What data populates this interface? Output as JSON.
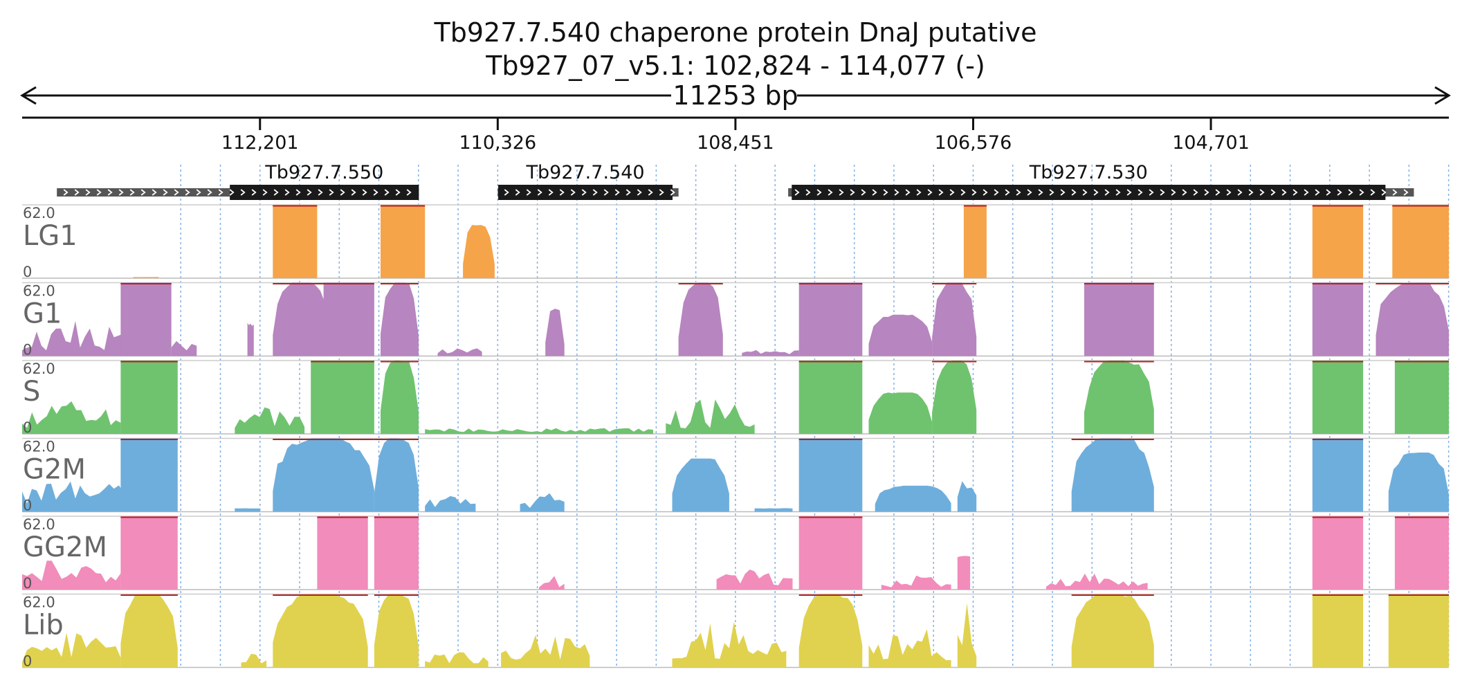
{
  "title": {
    "line1": "Tb927.7.540  chaperone protein DnaJ  putative",
    "line2": "Tb927_07_v5.1: 102,824 - 114,077 (-)",
    "span_label": "11253 bp"
  },
  "chart_data": {
    "type": "area",
    "x_range": [
      102824,
      114077
    ],
    "x_reversed": true,
    "x_ticks": [
      {
        "value": 112201,
        "label": "112,201"
      },
      {
        "value": 110326,
        "label": "110,326"
      },
      {
        "value": 108451,
        "label": "108,451"
      },
      {
        "value": 106576,
        "label": "106,576"
      },
      {
        "value": 104701,
        "label": "104,701"
      }
    ],
    "genes": [
      {
        "name": "Tb927.7.550",
        "cds": [
          112439,
          110948
        ],
        "utr": [
          113803,
          111001
        ],
        "strand": "+"
      },
      {
        "name": "Tb927.7.540",
        "cds": [
          110322,
          108947
        ],
        "utr": [
          110326,
          108900
        ],
        "strand": "+"
      },
      {
        "name": "Tb927.7.530",
        "cds": [
          108007,
          103324
        ],
        "utr": [
          108035,
          103100
        ],
        "strand": "+"
      }
    ],
    "y_range": [
      0,
      62.0
    ],
    "y_labels": {
      "max": "62.0",
      "min": "0"
    },
    "tracks": [
      {
        "name": "LG1",
        "color": "#f5a44a",
        "segments": [
          {
            "from": 113200,
            "to": 113000,
            "peak": 1,
            "shape": "flat"
          },
          {
            "from": 112100,
            "to": 111750,
            "peak": 62,
            "shape": "plateau"
          },
          {
            "from": 111250,
            "to": 110900,
            "peak": 62,
            "shape": "plateau"
          },
          {
            "from": 110600,
            "to": 110350,
            "peak": 45,
            "shape": "hill"
          },
          {
            "from": 106650,
            "to": 106470,
            "peak": 62,
            "shape": "plateau"
          },
          {
            "from": 103900,
            "to": 103500,
            "peak": 62,
            "shape": "plateau"
          },
          {
            "from": 103270,
            "to": 102824,
            "peak": 62,
            "shape": "plateau"
          }
        ]
      },
      {
        "name": "G1",
        "color": "#b785bf",
        "segments": [
          {
            "from": 114077,
            "to": 113200,
            "peak": 30,
            "shape": "noisy"
          },
          {
            "from": 113300,
            "to": 112900,
            "peak": 62,
            "shape": "plateau"
          },
          {
            "from": 112900,
            "to": 112700,
            "peak": 15,
            "shape": "low"
          },
          {
            "from": 112300,
            "to": 112250,
            "peak": 28,
            "shape": "flat"
          },
          {
            "from": 112100,
            "to": 111650,
            "peak": 62,
            "shape": "hill"
          },
          {
            "from": 111700,
            "to": 111300,
            "peak": 62,
            "shape": "plateau"
          },
          {
            "from": 111250,
            "to": 110950,
            "peak": 62,
            "shape": "hill"
          },
          {
            "from": 110800,
            "to": 110450,
            "peak": 8,
            "shape": "low"
          },
          {
            "from": 109950,
            "to": 109800,
            "peak": 40,
            "shape": "hill"
          },
          {
            "from": 108900,
            "to": 108550,
            "peak": 62,
            "shape": "hill"
          },
          {
            "from": 108400,
            "to": 107950,
            "peak": 6,
            "shape": "low"
          },
          {
            "from": 107950,
            "to": 107450,
            "peak": 62,
            "shape": "plateau"
          },
          {
            "from": 107400,
            "to": 106900,
            "peak": 35,
            "shape": "hill"
          },
          {
            "from": 106900,
            "to": 106550,
            "peak": 62,
            "shape": "hill"
          },
          {
            "from": 105700,
            "to": 105150,
            "peak": 62,
            "shape": "plateau"
          },
          {
            "from": 103900,
            "to": 103500,
            "peak": 62,
            "shape": "plateau"
          },
          {
            "from": 103400,
            "to": 102824,
            "peak": 62,
            "shape": "hill"
          }
        ]
      },
      {
        "name": "S",
        "color": "#6fc36f",
        "segments": [
          {
            "from": 114077,
            "to": 113300,
            "peak": 28,
            "shape": "noisy"
          },
          {
            "from": 113300,
            "to": 112850,
            "peak": 62,
            "shape": "plateau"
          },
          {
            "from": 112400,
            "to": 111850,
            "peak": 25,
            "shape": "noisy"
          },
          {
            "from": 111800,
            "to": 111300,
            "peak": 62,
            "shape": "plateau"
          },
          {
            "from": 111250,
            "to": 110950,
            "peak": 62,
            "shape": "hill"
          },
          {
            "from": 110900,
            "to": 109100,
            "peak": 6,
            "shape": "low"
          },
          {
            "from": 109000,
            "to": 108300,
            "peak": 30,
            "shape": "noisy"
          },
          {
            "from": 107950,
            "to": 107450,
            "peak": 62,
            "shape": "plateau"
          },
          {
            "from": 107400,
            "to": 106900,
            "peak": 35,
            "shape": "hill"
          },
          {
            "from": 106900,
            "to": 106550,
            "peak": 62,
            "shape": "hill"
          },
          {
            "from": 105700,
            "to": 105150,
            "peak": 62,
            "shape": "hill"
          },
          {
            "from": 103900,
            "to": 103500,
            "peak": 62,
            "shape": "plateau"
          },
          {
            "from": 103250,
            "to": 102824,
            "peak": 62,
            "shape": "plateau"
          }
        ]
      },
      {
        "name": "G2M",
        "color": "#6eaedc",
        "segments": [
          {
            "from": 114077,
            "to": 113200,
            "peak": 32,
            "shape": "noisy"
          },
          {
            "from": 113300,
            "to": 112850,
            "peak": 62,
            "shape": "plateau"
          },
          {
            "from": 112400,
            "to": 112200,
            "peak": 3,
            "shape": "flat"
          },
          {
            "from": 112100,
            "to": 111300,
            "peak": 62,
            "shape": "hill"
          },
          {
            "from": 111300,
            "to": 110950,
            "peak": 62,
            "shape": "hill"
          },
          {
            "from": 110900,
            "to": 110500,
            "peak": 15,
            "shape": "noisy"
          },
          {
            "from": 110150,
            "to": 109800,
            "peak": 18,
            "shape": "noisy"
          },
          {
            "from": 108950,
            "to": 108500,
            "peak": 45,
            "shape": "hill"
          },
          {
            "from": 108300,
            "to": 108000,
            "peak": 3,
            "shape": "flat"
          },
          {
            "from": 107950,
            "to": 107450,
            "peak": 62,
            "shape": "plateau"
          },
          {
            "from": 107350,
            "to": 106750,
            "peak": 22,
            "shape": "hill"
          },
          {
            "from": 106700,
            "to": 106550,
            "peak": 40,
            "shape": "noisy"
          },
          {
            "from": 105800,
            "to": 105150,
            "peak": 62,
            "shape": "hill"
          },
          {
            "from": 103900,
            "to": 103500,
            "peak": 62,
            "shape": "plateau"
          },
          {
            "from": 103300,
            "to": 102824,
            "peak": 50,
            "shape": "hill"
          }
        ]
      },
      {
        "name": "GG2M",
        "color": "#f18cbb",
        "segments": [
          {
            "from": 114077,
            "to": 113300,
            "peak": 28,
            "shape": "noisy"
          },
          {
            "from": 113300,
            "to": 112850,
            "peak": 62,
            "shape": "plateau"
          },
          {
            "from": 111750,
            "to": 111350,
            "peak": 62,
            "shape": "plateau"
          },
          {
            "from": 111300,
            "to": 110950,
            "peak": 62,
            "shape": "plateau"
          },
          {
            "from": 110000,
            "to": 109800,
            "peak": 12,
            "shape": "noisy"
          },
          {
            "from": 108600,
            "to": 108000,
            "peak": 18,
            "shape": "noisy"
          },
          {
            "from": 107950,
            "to": 107450,
            "peak": 62,
            "shape": "plateau"
          },
          {
            "from": 107300,
            "to": 106750,
            "peak": 12,
            "shape": "noisy"
          },
          {
            "from": 106700,
            "to": 106600,
            "peak": 30,
            "shape": "flat"
          },
          {
            "from": 106000,
            "to": 105200,
            "peak": 14,
            "shape": "noisy"
          },
          {
            "from": 103900,
            "to": 103500,
            "peak": 62,
            "shape": "plateau"
          },
          {
            "from": 103250,
            "to": 102824,
            "peak": 62,
            "shape": "plateau"
          }
        ]
      },
      {
        "name": "Lib",
        "color": "#e0d24e",
        "segments": [
          {
            "from": 114077,
            "to": 113300,
            "peak": 30,
            "shape": "noisy"
          },
          {
            "from": 113300,
            "to": 112850,
            "peak": 62,
            "shape": "hill"
          },
          {
            "from": 112350,
            "to": 112150,
            "peak": 12,
            "shape": "noisy"
          },
          {
            "from": 112100,
            "to": 111350,
            "peak": 62,
            "shape": "hill"
          },
          {
            "from": 111300,
            "to": 110950,
            "peak": 62,
            "shape": "hill"
          },
          {
            "from": 110900,
            "to": 110400,
            "peak": 15,
            "shape": "noisy"
          },
          {
            "from": 110300,
            "to": 109600,
            "peak": 32,
            "shape": "noisy"
          },
          {
            "from": 108950,
            "to": 108050,
            "peak": 40,
            "shape": "noisy"
          },
          {
            "from": 107950,
            "to": 107450,
            "peak": 62,
            "shape": "hill"
          },
          {
            "from": 107400,
            "to": 106750,
            "peak": 40,
            "shape": "noisy"
          },
          {
            "from": 106700,
            "to": 106550,
            "peak": 62,
            "shape": "noisy"
          },
          {
            "from": 105800,
            "to": 105150,
            "peak": 62,
            "shape": "hill"
          },
          {
            "from": 103900,
            "to": 103500,
            "peak": 62,
            "shape": "plateau"
          },
          {
            "from": 103300,
            "to": 102824,
            "peak": 62,
            "shape": "plateau"
          }
        ]
      }
    ]
  }
}
